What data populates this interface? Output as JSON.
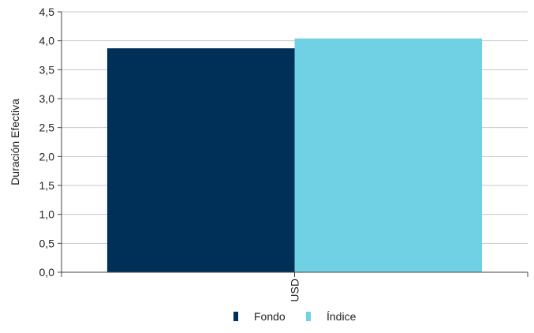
{
  "chart_data": {
    "type": "bar",
    "categories": [
      "USD"
    ],
    "series": [
      {
        "name": "Fondo",
        "values": [
          3.87
        ],
        "color": "#003057"
      },
      {
        "name": "Índice",
        "values": [
          4.04
        ],
        "color": "#70d1e4"
      }
    ],
    "ylabel": "Duración Efectiva",
    "xlabel": "",
    "ylim": [
      0,
      4.5
    ],
    "yticks": [
      "0,0",
      "0,5",
      "1,0",
      "1,5",
      "2,0",
      "2,5",
      "3,0",
      "3,5",
      "4,0",
      "4,5"
    ],
    "grid": true,
    "legend_position": "bottom-center",
    "gridline_color": "#c8c8c8"
  }
}
